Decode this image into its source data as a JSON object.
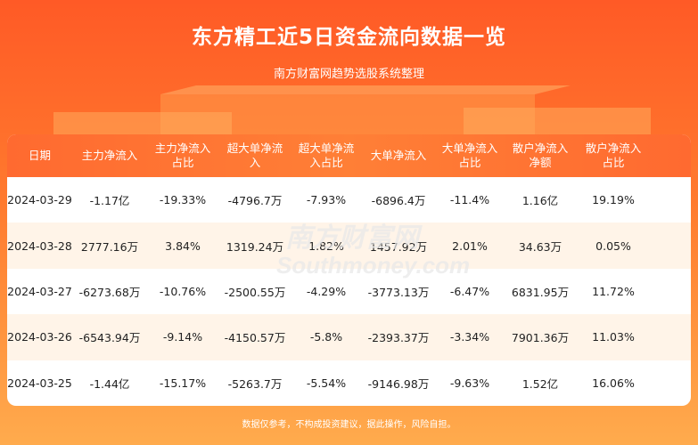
{
  "header": {
    "title": "东方精工近5日资金流向数据一览",
    "subtitle": "南方财富网趋势选股系统整理"
  },
  "table": {
    "columns": [
      "日期",
      "主力净流入",
      "主力净流入\n占比",
      "超大单净流\n入",
      "超大单净流\n入占比",
      "大单净流入",
      "大单净流入\n占比",
      "散户净流入\n净额",
      "散户净流入\n占比"
    ],
    "rows": [
      [
        "2024-03-29",
        "-1.17亿",
        "-19.33%",
        "-4796.7万",
        "-7.93%",
        "-6896.4万",
        "-11.4%",
        "1.16亿",
        "19.19%"
      ],
      [
        "2024-03-28",
        "2777.16万",
        "3.84%",
        "1319.24万",
        "1.82%",
        "1457.92万",
        "2.01%",
        "34.63万",
        "0.05%"
      ],
      [
        "2024-03-27",
        "-6273.68万",
        "-10.76%",
        "-2500.55万",
        "-4.29%",
        "-3773.13万",
        "-6.47%",
        "6831.95万",
        "11.72%"
      ],
      [
        "2024-03-26",
        "-6543.94万",
        "-9.14%",
        "-4150.57万",
        "-5.8%",
        "-2393.37万",
        "-3.34%",
        "7901.36万",
        "11.03%"
      ],
      [
        "2024-03-25",
        "-1.44亿",
        "-15.17%",
        "-5263.7万",
        "-5.54%",
        "-9146.98万",
        "-9.63%",
        "1.52亿",
        "16.06%"
      ]
    ]
  },
  "watermark": {
    "cn": "南方财富网",
    "en": "Southmoney.com"
  },
  "footer": {
    "disclaimer": "数据仅参考，不构成投资建议，据此操作，风险自担。"
  },
  "colors": {
    "brand": "#ff5a26",
    "header_row": "#ff7a34",
    "alt_row": "#fff4e8"
  }
}
